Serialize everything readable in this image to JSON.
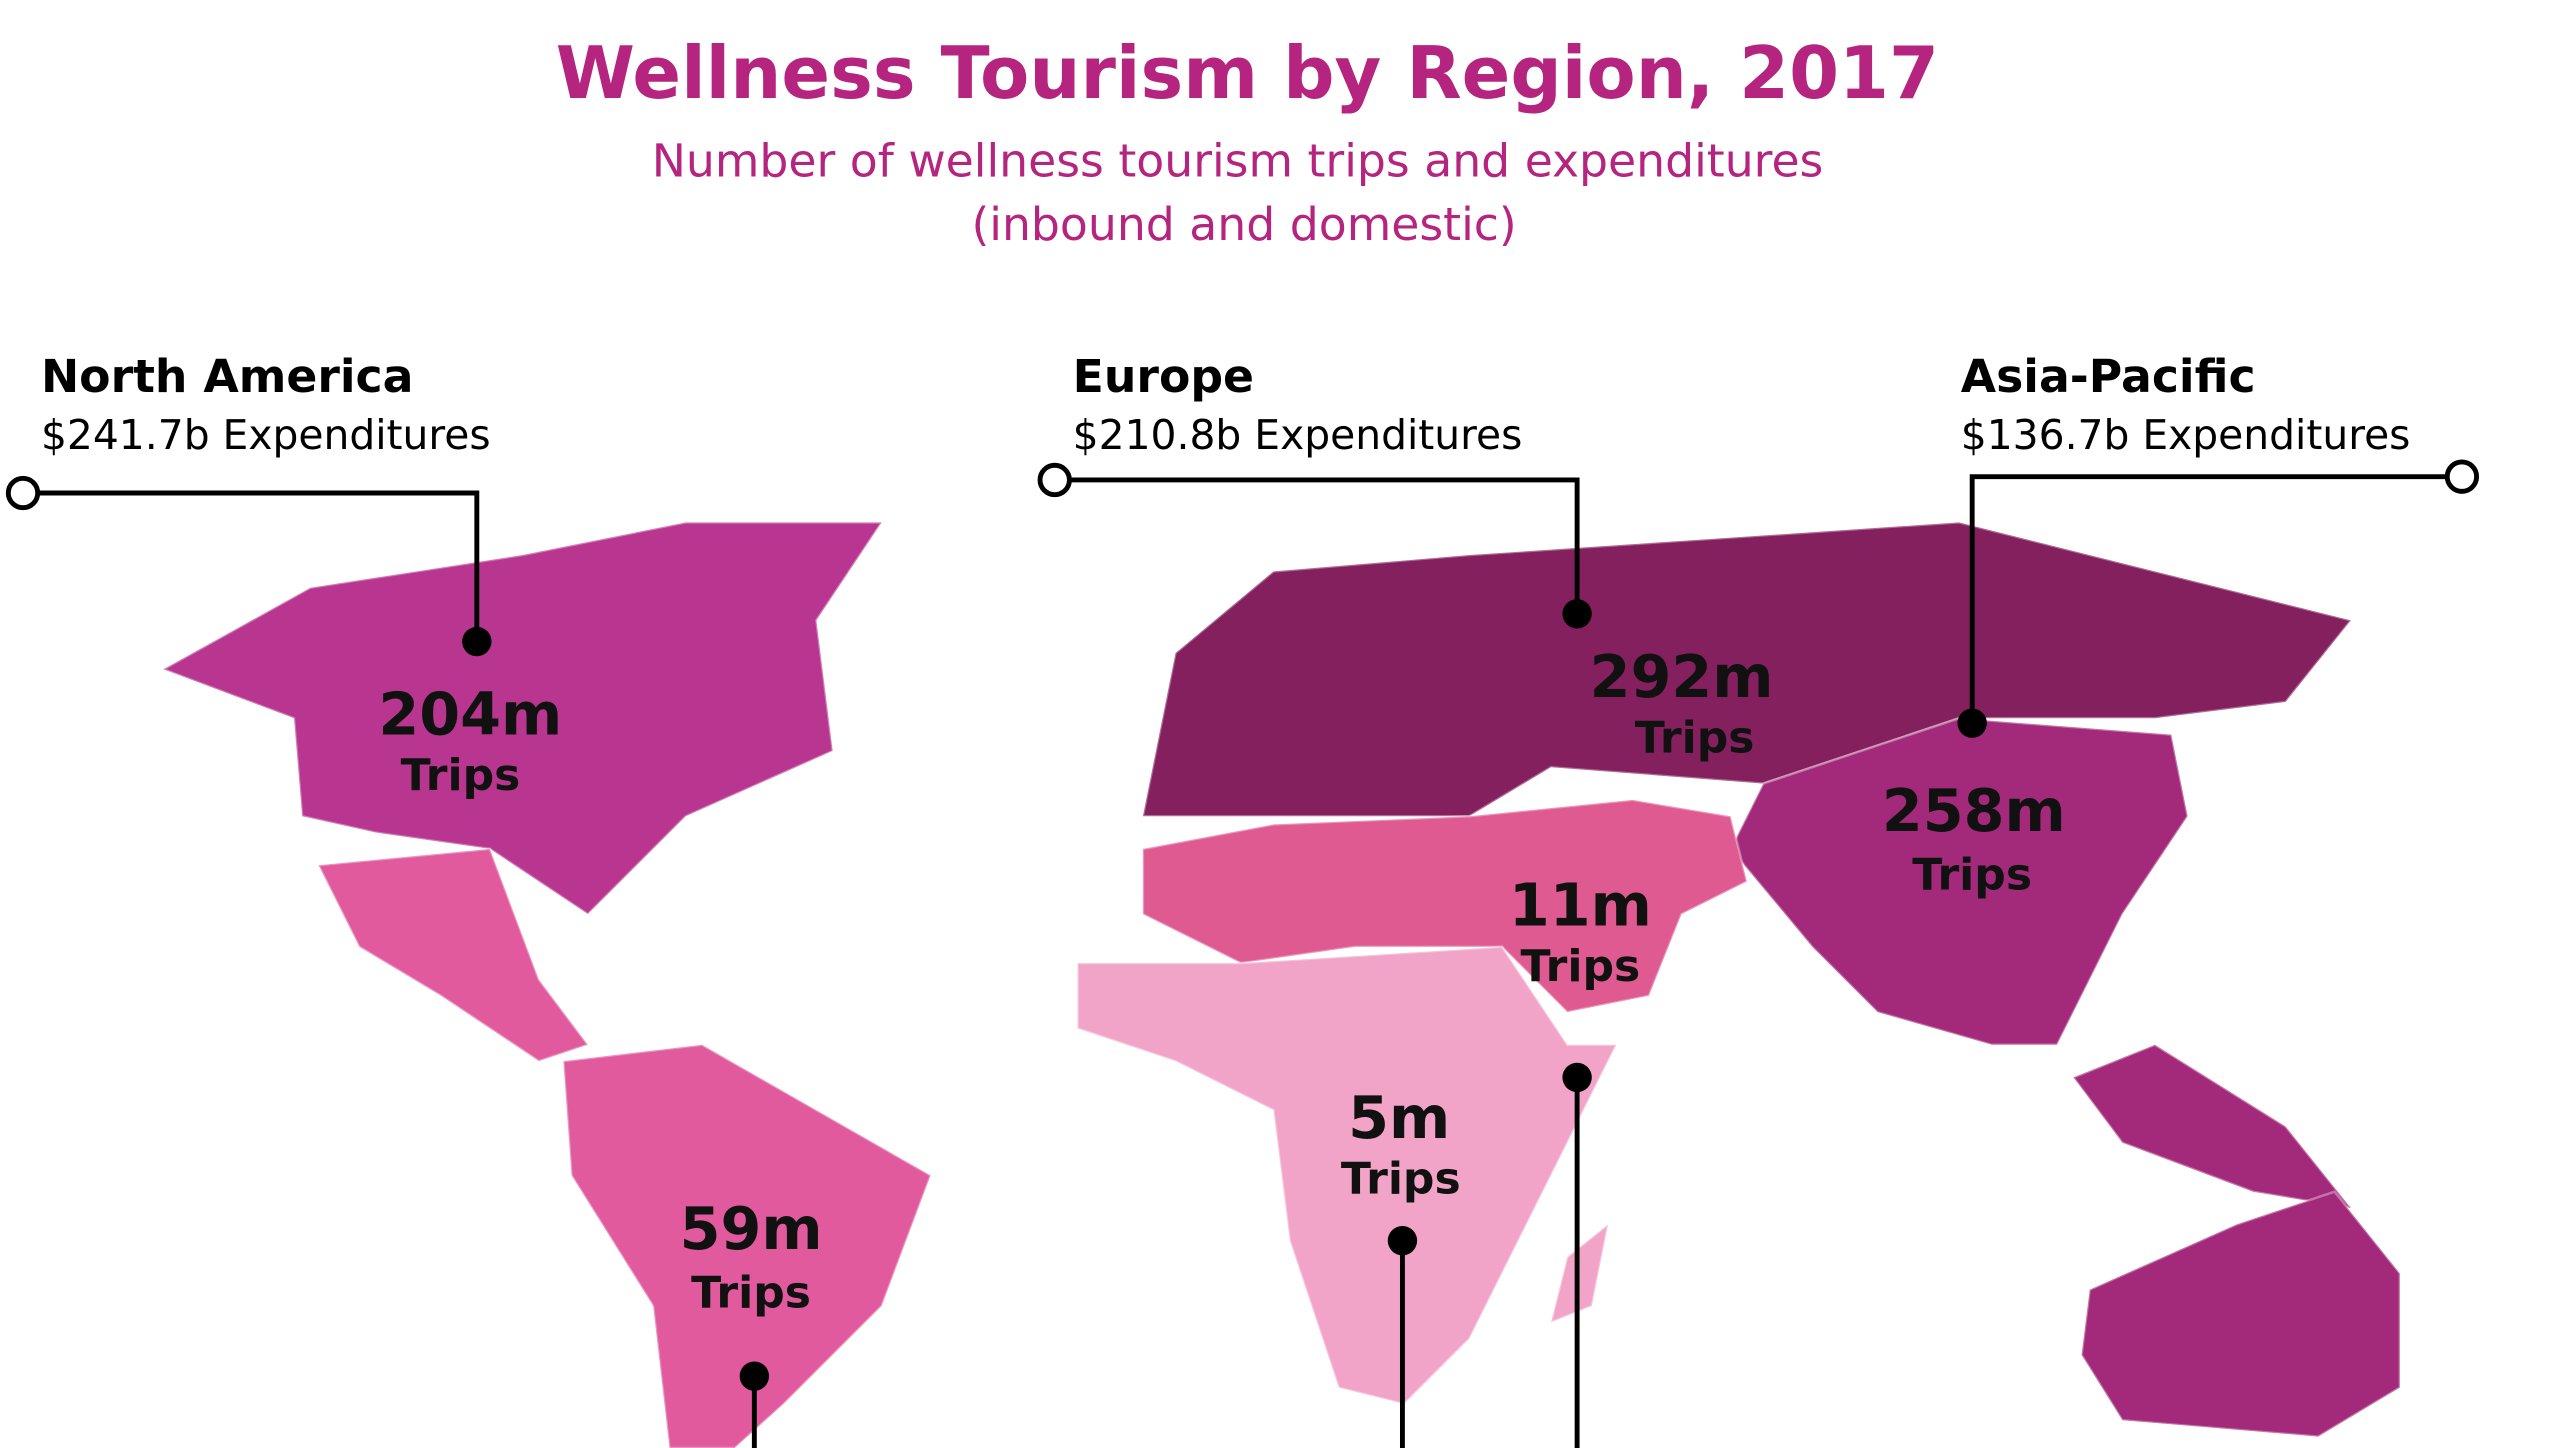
{
  "header": {
    "title": "Wellness Tourism by Region, 2017",
    "subtitle": [
      "Number of wellness tourism trips and expenditures",
      "(inbound and domestic)"
    ]
  },
  "regions": [
    {
      "name": "North America",
      "expenditures": "$241.7b Expenditures",
      "trips": "204m",
      "unit": "Trips"
    },
    {
      "name": "Europe",
      "expenditures": "$210.8b Expenditures",
      "trips": "292m",
      "unit": "Trips"
    },
    {
      "name": "Asia-Pacific",
      "expenditures": "$136.7b Expenditures",
      "trips": "258m",
      "unit": "Trips"
    },
    {
      "trips": "59m",
      "unit": "Trips"
    },
    {
      "trips": "11m",
      "unit": "Trips"
    },
    {
      "trips": "5m",
      "unit": "Trips"
    }
  ]
}
